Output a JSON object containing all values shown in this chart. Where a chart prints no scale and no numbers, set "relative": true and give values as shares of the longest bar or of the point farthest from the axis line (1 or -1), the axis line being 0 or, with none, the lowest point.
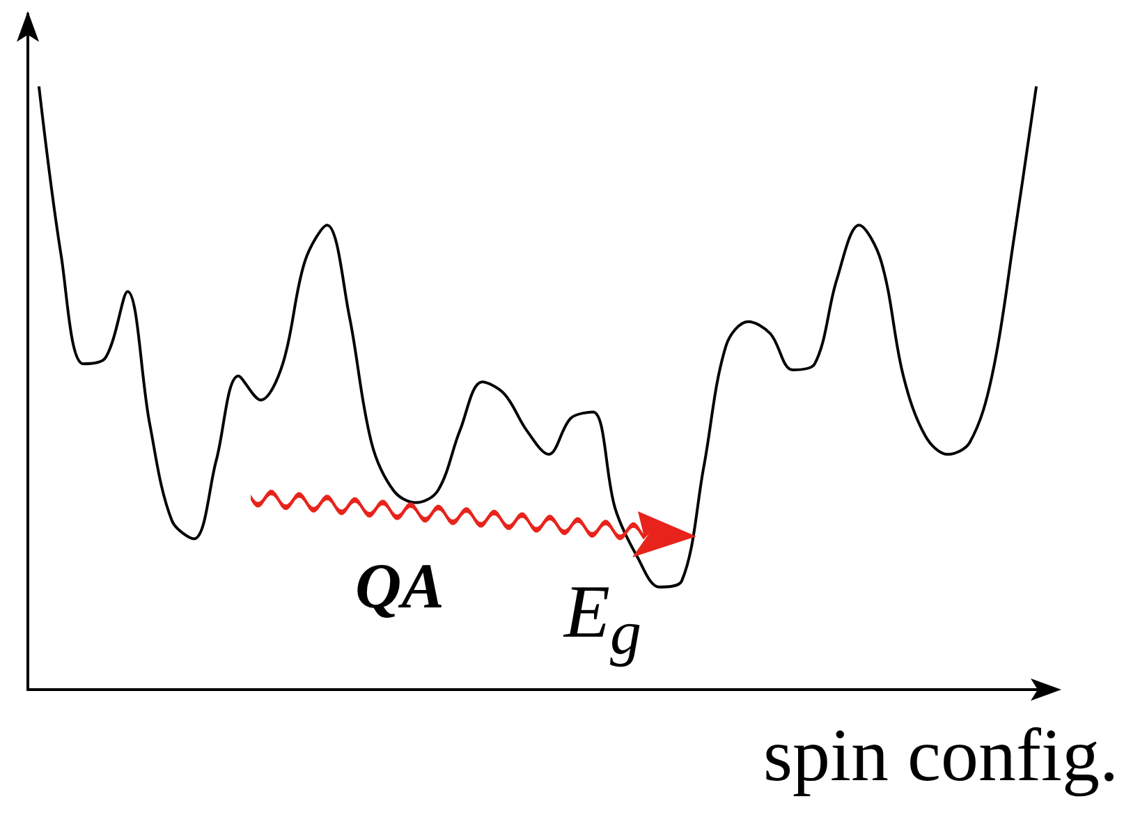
{
  "chart_data": {
    "type": "line",
    "relative": true,
    "xlabel": "spin config.",
    "color": "#000000",
    "marker": "none",
    "line_style": "solid",
    "grid": false,
    "categories": [
      null,
      null,
      null,
      null,
      null,
      null,
      null,
      null,
      null,
      null,
      null,
      null,
      null,
      null,
      null,
      null,
      null,
      null,
      null,
      null,
      null,
      null,
      null,
      null,
      null,
      null,
      null,
      null,
      null,
      null,
      null,
      null,
      null,
      null,
      null,
      null,
      null,
      null,
      null,
      null,
      null,
      null,
      null,
      null,
      null,
      null
    ],
    "values": [
      1,
      0.72,
      0.54,
      0.55,
      0.66,
      0.44,
      0.28,
      0.25,
      0.38,
      0.52,
      0.48,
      0.54,
      0.71,
      0.77,
      0.62,
      0.41,
      0.33,
      0.31,
      0.33,
      0.43,
      0.51,
      0.49,
      0.43,
      0.39,
      0.45,
      0.46,
      0.3,
      0.22,
      0.17,
      0.18,
      0.37,
      0.57,
      0.61,
      0.59,
      0.53,
      0.54,
      0.68,
      0.77,
      0.71,
      0.52,
      0.42,
      0.39,
      0.41,
      0.52,
      0.75,
      1
    ],
    "annotations": [
      "QA",
      "E$_{g}$"
    ]
  }
}
